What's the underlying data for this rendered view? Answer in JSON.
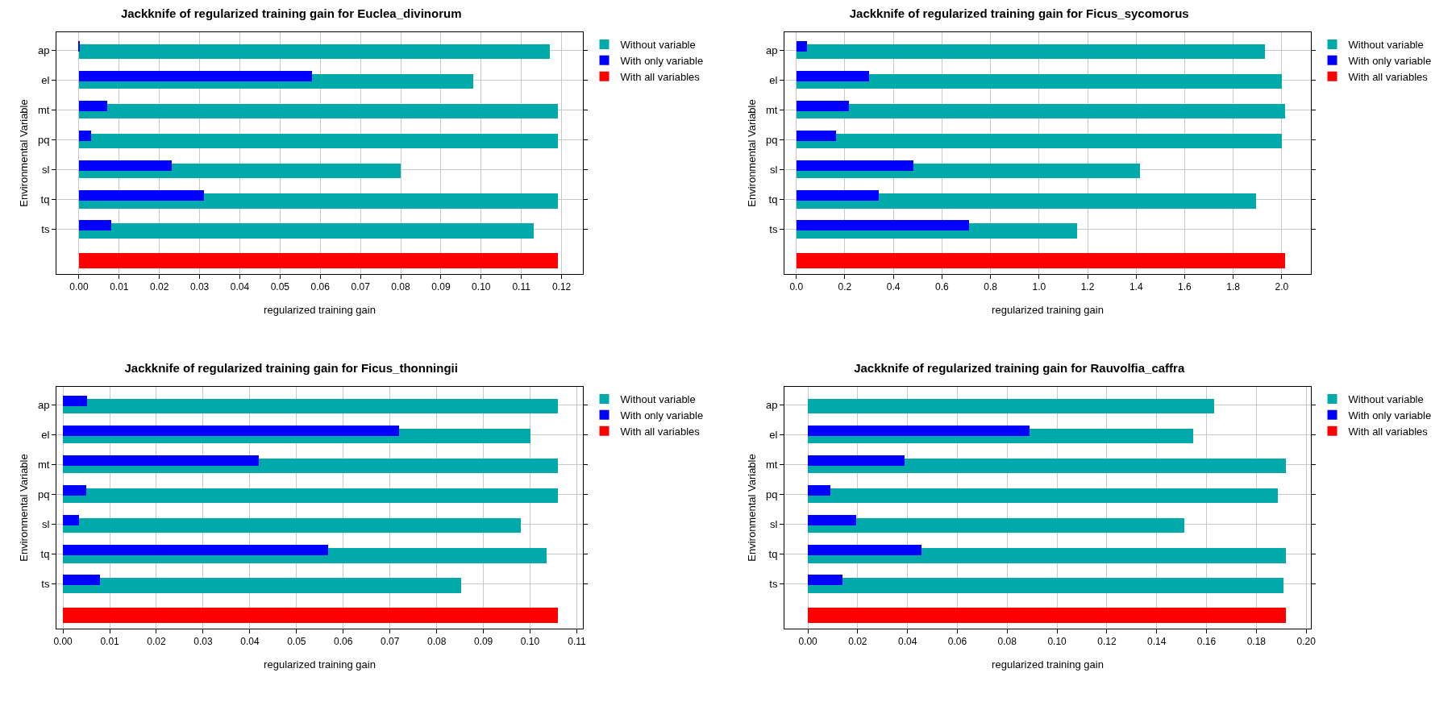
{
  "chart_data": [
    {
      "type": "bar",
      "orientation": "horizontal",
      "title": "Jackknife of regularized training gain for Euclea_divinorum",
      "xlabel": "regularized training gain",
      "ylabel": "Environmental Variable",
      "categories": [
        "ap",
        "el",
        "mt",
        "pq",
        "sl",
        "tq",
        "ts",
        null
      ],
      "series": [
        {
          "name": "Without variable",
          "color": "#00aaaa",
          "values": [
            0.117,
            0.098,
            0.119,
            0.119,
            0.08,
            0.119,
            0.113,
            null
          ]
        },
        {
          "name": "With only variable",
          "color": "#0000ff",
          "values": [
            0.0002,
            0.058,
            0.007,
            0.003,
            0.023,
            0.031,
            0.008,
            null
          ]
        },
        {
          "name": "With all variables",
          "color": "#ff0000",
          "values": [
            null,
            null,
            null,
            null,
            null,
            null,
            null,
            0.119
          ]
        }
      ],
      "xlim": [
        -0.0056,
        0.1253
      ],
      "xticks": [
        {
          "value": 0,
          "label": "0.00"
        },
        0.01,
        0.02,
        0.03,
        0.04,
        0.05,
        0.06,
        0.07,
        0.08,
        0.09,
        {
          "value": 0.1,
          "label": "0.10"
        },
        0.11,
        0.12
      ],
      "grid": true,
      "legend": "top right"
    },
    {
      "type": "bar",
      "orientation": "horizontal",
      "title": "Jackknife of regularized training gain for Ficus_sycomorus",
      "xlabel": "regularized training gain",
      "ylabel": "Environmental Variable",
      "categories": [
        "ap",
        "el",
        "mt",
        "pq",
        "sl",
        "tq",
        "ts",
        null
      ],
      "series": [
        {
          "name": "Without variable",
          "color": "#00aaaa",
          "values": [
            1.93,
            2.0,
            2.015,
            2.0,
            1.415,
            1.895,
            1.157,
            null
          ]
        },
        {
          "name": "With only variable",
          "color": "#0000ff",
          "values": [
            0.044,
            0.3,
            0.218,
            0.162,
            0.483,
            0.34,
            0.71,
            null
          ]
        },
        {
          "name": "With all variables",
          "color": "#ff0000",
          "values": [
            null,
            null,
            null,
            null,
            null,
            null,
            null,
            2.015
          ]
        }
      ],
      "xlim": [
        -0.049,
        2.12
      ],
      "xticks": [
        {
          "value": 0,
          "label": "0.0"
        },
        0.2,
        0.4,
        0.6,
        0.8,
        {
          "value": 1,
          "label": "1.0"
        },
        1.2,
        1.4,
        1.6,
        1.8,
        {
          "value": 2,
          "label": "2.0"
        }
      ],
      "grid": true,
      "legend": "top right"
    },
    {
      "type": "bar",
      "orientation": "horizontal",
      "title": "Jackknife of regularized training gain for Ficus_thonningii",
      "xlabel": "regularized training gain",
      "ylabel": "Environmental Variable",
      "categories": [
        "ap",
        "el",
        "mt",
        "pq",
        "sl",
        "tq",
        "ts",
        null
      ],
      "series": [
        {
          "name": "Without variable",
          "color": "#00aaaa",
          "values": [
            0.106,
            0.1,
            0.106,
            0.106,
            0.098,
            0.1036,
            0.0853,
            null
          ]
        },
        {
          "name": "With only variable",
          "color": "#0000ff",
          "values": [
            0.0052,
            0.072,
            0.042,
            0.005,
            0.0034,
            0.0567,
            0.008,
            null
          ]
        },
        {
          "name": "With all variables",
          "color": "#ff0000",
          "values": [
            null,
            null,
            null,
            null,
            null,
            null,
            null,
            0.106
          ]
        }
      ],
      "xlim": [
        -0.0014,
        0.1113
      ],
      "xticks": [
        {
          "value": 0,
          "label": "0.00"
        },
        0.01,
        0.02,
        0.03,
        0.04,
        0.05,
        0.06,
        0.07,
        0.08,
        0.09,
        {
          "value": 0.1,
          "label": "0.10"
        },
        0.11
      ],
      "grid": true,
      "legend": "top right"
    },
    {
      "type": "bar",
      "orientation": "horizontal",
      "title": "Jackknife of regularized training gain for Rauvolfia_caffra",
      "xlabel": "regularized training gain",
      "ylabel": "Environmental Variable",
      "categories": [
        "ap",
        "el",
        "mt",
        "pq",
        "sl",
        "tq",
        "ts",
        null
      ],
      "series": [
        {
          "name": "Without variable",
          "color": "#00aaaa",
          "values": [
            0.163,
            0.1545,
            0.192,
            0.1887,
            0.151,
            0.192,
            0.191,
            null
          ]
        },
        {
          "name": "With only variable",
          "color": "#0000ff",
          "values": [
            0,
            0.089,
            0.0387,
            0.0089,
            0.0195,
            0.0457,
            0.014,
            null
          ]
        },
        {
          "name": "With all variables",
          "color": "#ff0000",
          "values": [
            null,
            null,
            null,
            null,
            null,
            null,
            null,
            0.192
          ]
        }
      ],
      "xlim": [
        -0.0094,
        0.2019
      ],
      "xticks": [
        {
          "value": 0,
          "label": "0.00"
        },
        0.02,
        0.04,
        0.06,
        0.08,
        {
          "value": 0.1,
          "label": "0.10"
        },
        0.12,
        0.14,
        0.16,
        0.18,
        {
          "value": 0.2,
          "label": "0.20"
        }
      ],
      "grid": true,
      "legend": "top right"
    }
  ]
}
